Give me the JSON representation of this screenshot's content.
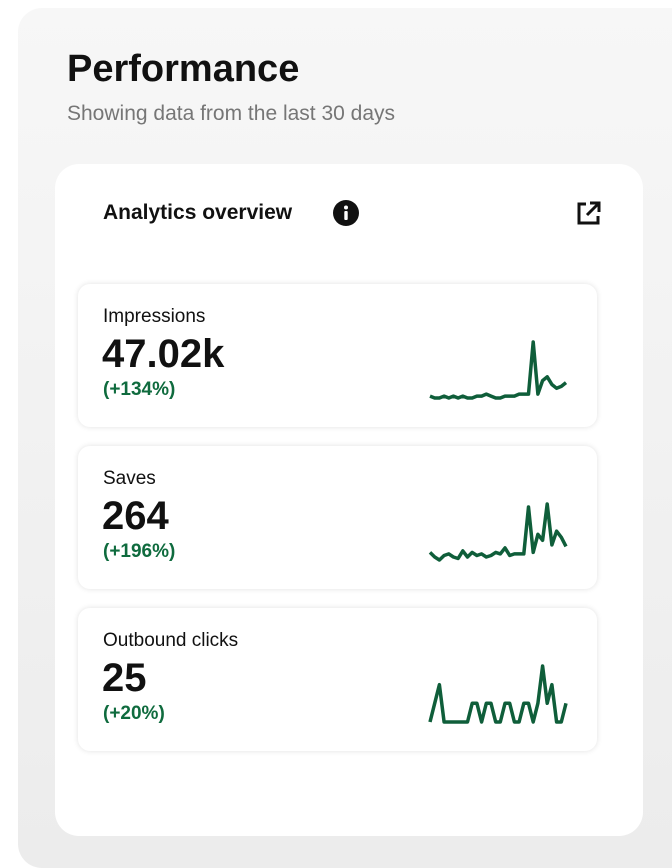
{
  "header": {
    "title": "Performance",
    "subtitle": "Showing data from the last 30 days"
  },
  "panel": {
    "title": "Analytics overview"
  },
  "metrics": [
    {
      "label": "Impressions",
      "value": "47.02k",
      "change": "(+134%)",
      "trend": [
        2,
        1,
        1,
        2,
        1,
        2,
        1,
        2,
        1,
        1,
        2,
        2,
        3,
        2,
        1,
        1,
        2,
        2,
        2,
        3,
        3,
        3,
        30,
        3,
        10,
        12,
        8,
        6,
        7,
        9
      ]
    },
    {
      "label": "Saves",
      "value": "264",
      "change": "(+196%)",
      "trend": [
        8,
        5,
        3,
        6,
        7,
        5,
        4,
        9,
        5,
        8,
        6,
        7,
        5,
        6,
        8,
        7,
        11,
        6,
        7,
        7,
        7,
        38,
        8,
        20,
        16,
        40,
        13,
        22,
        18,
        12
      ]
    },
    {
      "label": "Outbound clicks",
      "value": "25",
      "change": "(+20%)",
      "trend": [
        0,
        1,
        2,
        0,
        0,
        0,
        0,
        0,
        0,
        1,
        1,
        0,
        1,
        1,
        0,
        0,
        1,
        1,
        0,
        0,
        1,
        1,
        0,
        1,
        3,
        1,
        2,
        0,
        0,
        1
      ]
    }
  ]
}
